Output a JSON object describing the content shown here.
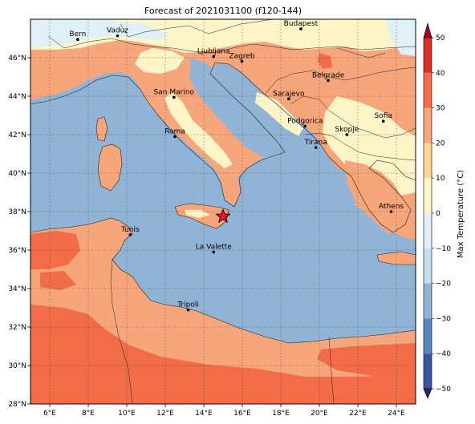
{
  "title": "Forecast of 2021031100 (f120-144)",
  "map": {
    "lon_range": [
      5,
      25
    ],
    "lat_range": [
      28,
      48
    ],
    "lon_ticks": [
      "6°E",
      "8°E",
      "10°E",
      "12°E",
      "14°E",
      "16°E",
      "18°E",
      "20°E",
      "22°E",
      "24°E"
    ],
    "lon_tick_values": [
      6,
      8,
      10,
      12,
      14,
      16,
      18,
      20,
      22,
      24
    ],
    "lat_ticks": [
      "28°N",
      "30°N",
      "32°N",
      "34°N",
      "36°N",
      "38°N",
      "40°N",
      "42°N",
      "44°N",
      "46°N"
    ],
    "lat_tick_values": [
      28,
      30,
      32,
      34,
      36,
      38,
      40,
      42,
      44,
      46
    ],
    "grid": "dotted",
    "colors": {
      "sea": "#91b4d6",
      "land_warm": "#f7a57a",
      "land_hot": "#f26c48",
      "land_mild": "#fdf5c8",
      "land_cool": "#e0f0f6"
    },
    "cities": [
      {
        "name": "Bern",
        "lon": 7.45,
        "lat": 46.95
      },
      {
        "name": "Vaduz",
        "lon": 9.52,
        "lat": 47.14
      },
      {
        "name": "Budapest",
        "lon": 19.04,
        "lat": 47.5
      },
      {
        "name": "Ljubljana",
        "lon": 14.51,
        "lat": 46.06
      },
      {
        "name": "Zagreb",
        "lon": 15.98,
        "lat": 45.81
      },
      {
        "name": "Belgrade",
        "lon": 20.46,
        "lat": 44.82
      },
      {
        "name": "San Marino",
        "lon": 12.45,
        "lat": 43.94
      },
      {
        "name": "Sarajevo",
        "lon": 18.41,
        "lat": 43.86
      },
      {
        "name": "Sofia",
        "lon": 23.32,
        "lat": 42.7
      },
      {
        "name": "Podgorica",
        "lon": 19.26,
        "lat": 42.44
      },
      {
        "name": "Skopje",
        "lon": 21.43,
        "lat": 42.0
      },
      {
        "name": "Roma",
        "lon": 12.5,
        "lat": 41.9
      },
      {
        "name": "Tirana",
        "lon": 19.82,
        "lat": 41.33
      },
      {
        "name": "Athens",
        "lon": 23.73,
        "lat": 38.0
      },
      {
        "name": "Tunis",
        "lon": 10.18,
        "lat": 36.8
      },
      {
        "name": "La Valette",
        "lon": 14.51,
        "lat": 35.9
      },
      {
        "name": "Tripoli",
        "lon": 13.19,
        "lat": 32.89
      }
    ],
    "marker": {
      "symbol": "star",
      "lon": 15.0,
      "lat": 37.75,
      "color": "#e41a1c"
    }
  },
  "colorbar": {
    "label": "Max Temperature (°C)",
    "ticks": [
      "50",
      "40",
      "30",
      "20",
      "10",
      "0",
      "−10",
      "−20",
      "−30",
      "−40",
      "−50"
    ],
    "tick_values": [
      50,
      40,
      30,
      20,
      10,
      0,
      -10,
      -20,
      -30,
      -40,
      -50
    ],
    "range": [
      -50,
      50
    ],
    "colors": [
      "#27266f",
      "#3853a5",
      "#5b87bf",
      "#91b4d6",
      "#c4def0",
      "#e0f0f6",
      "#fdf5c8",
      "#fdd68f",
      "#f7a57a",
      "#f26c48",
      "#d73027",
      "#a50026"
    ]
  }
}
